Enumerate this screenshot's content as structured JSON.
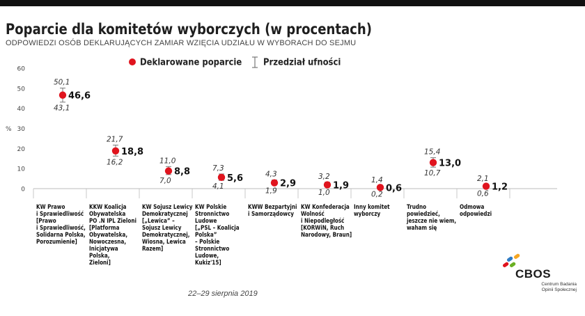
{
  "title": "Poparcie dla komitetów wyborczych (w procentach)",
  "subtitle": "ODPOWIEDZI OSÓB DEKLARUJĄCYCH ZAMIAR WZIĘCIA UDZIAŁU W WYBORACH DO SEJMU",
  "date": "22–29 sierpnia 2019",
  "logo": {
    "name": "CBOS",
    "sub": "Centrum Badania\nOpinii Społecznej"
  },
  "colors": {
    "marker": "#e0141e",
    "errorbar": "#777777",
    "axis": "#bbbbbb"
  },
  "chart_data": {
    "type": "scatter",
    "title": "Poparcie dla komitetów wyborczych (w procentach)",
    "ylabel": "%",
    "ylim": [
      0,
      60
    ],
    "yticks": [
      "0",
      "10",
      "20",
      "30",
      "40",
      "50",
      "60"
    ],
    "legend": {
      "placement": "top-center",
      "entries": [
        "Deklarowane poparcie",
        "Przedział ufności"
      ]
    },
    "categories": [
      "KW Prawo\ni Sprawiedliwość\n[Prawo\ni Sprawiedliwość,\nSolidarna Polska,\nPorozumienie]",
      "KKW Koalicja\nObywatelska\nPO .N IPL Zieloni\n[Platforma\nObywatelska,\nNowoczesna,\nInicjatywa\nPolska,\nZieloni]",
      "KW Sojusz Lewicy\nDemokratycznej\n[„Lewica” –\nSojusz Lewicy\nDemokratycznej,\nWiosna, Lewica\nRazem]",
      "KW Polskie\nStronnictwo\nLudowe\n[„PSL – Koalicja\nPolska”\n– Polskie\nStronnictwo\nLudowe,\nKukiz'15]",
      "KWW Bezpartyjni\ni Samorządowcy",
      "KW Konfederacja\nWolność\ni Niepodległość\n[KORWiN, Ruch\nNarodowy, Braun]",
      "Inny komitet\nwyborczy",
      "Trudno\npowiedzieć,\njeszcze nie wiem,\nwaham się",
      "Odmowa\nodpowiedzi"
    ],
    "values": [
      "46,6",
      "18,8",
      "8,8",
      "5,6",
      "2,9",
      "1,9",
      "0,6",
      "13,0",
      "1,2"
    ],
    "upper": [
      "50,1",
      "21,7",
      "11,0",
      "7,3",
      "4,3",
      "3,2",
      "1,4",
      "15,4",
      "2,1"
    ],
    "lower": [
      "43,1",
      "16,2",
      "7,0",
      "4,1",
      "1,9",
      "1,0",
      "0,2",
      "10,7",
      "0,6"
    ]
  }
}
